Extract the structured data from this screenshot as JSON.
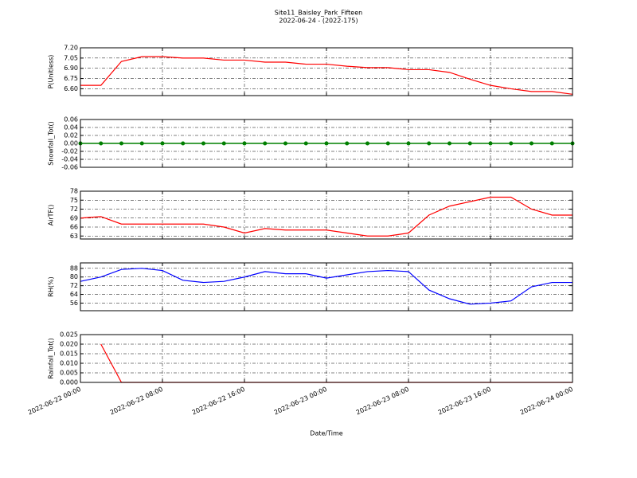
{
  "header": {
    "title": "Site11_Baisley_Park_Fifteen",
    "subtitle": "2022-06-24 - (2022-175)"
  },
  "chart_data": [
    {
      "type": "line",
      "ylabel": "P(Unitless)",
      "x": [
        "2022-06-22 00:00",
        "2022-06-22 02:00",
        "2022-06-22 04:00",
        "2022-06-22 06:00",
        "2022-06-22 08:00",
        "2022-06-22 10:00",
        "2022-06-22 12:00",
        "2022-06-22 14:00",
        "2022-06-22 16:00",
        "2022-06-22 18:00",
        "2022-06-22 20:00",
        "2022-06-22 22:00",
        "2022-06-23 00:00",
        "2022-06-23 02:00",
        "2022-06-23 04:00",
        "2022-06-23 06:00",
        "2022-06-23 08:00",
        "2022-06-23 10:00",
        "2022-06-23 12:00",
        "2022-06-23 14:00",
        "2022-06-23 16:00",
        "2022-06-23 18:00",
        "2022-06-23 20:00",
        "2022-06-23 22:00",
        "2022-06-24 00:00"
      ],
      "series": [
        {
          "color": "#ff0000",
          "values": [
            6.65,
            6.65,
            7.0,
            7.07,
            7.07,
            7.05,
            7.05,
            7.02,
            7.02,
            6.99,
            6.99,
            6.96,
            6.96,
            6.93,
            6.91,
            6.91,
            6.88,
            6.88,
            6.84,
            6.74,
            6.65,
            6.6,
            6.56,
            6.56,
            6.52
          ]
        }
      ],
      "xlim": [
        "2022-06-22 00:00",
        "2022-06-24 00:00"
      ],
      "xticks": [
        "2022-06-22 00:00",
        "2022-06-22 08:00",
        "2022-06-22 16:00",
        "2022-06-23 00:00",
        "2022-06-23 08:00",
        "2022-06-23 16:00",
        "2022-06-24 00:00"
      ],
      "ylim": [
        6.5,
        7.2
      ],
      "yticks": [
        {
          "value": 6.6,
          "label": "6.60"
        },
        6.75,
        {
          "value": 6.9,
          "label": "6.90"
        },
        7.05,
        {
          "value": 7.2,
          "label": "7.20"
        }
      ],
      "grid": true
    },
    {
      "type": "scatter",
      "ylabel": "Snowfall_Tot()",
      "x": [
        "2022-06-22 00:00",
        "2022-06-22 02:00",
        "2022-06-22 04:00",
        "2022-06-22 06:00",
        "2022-06-22 08:00",
        "2022-06-22 10:00",
        "2022-06-22 12:00",
        "2022-06-22 14:00",
        "2022-06-22 16:00",
        "2022-06-22 18:00",
        "2022-06-22 20:00",
        "2022-06-22 22:00",
        "2022-06-23 00:00",
        "2022-06-23 02:00",
        "2022-06-23 04:00",
        "2022-06-23 06:00",
        "2022-06-23 08:00",
        "2022-06-23 10:00",
        "2022-06-23 12:00",
        "2022-06-23 14:00",
        "2022-06-23 16:00",
        "2022-06-23 18:00",
        "2022-06-23 20:00",
        "2022-06-23 22:00",
        "2022-06-24 00:00"
      ],
      "series": [
        {
          "color": "#008000",
          "values": [
            0,
            0,
            0,
            0,
            0,
            0,
            0,
            0,
            0,
            0,
            0,
            0,
            0,
            0,
            0,
            0,
            0,
            0,
            0,
            0,
            0,
            0,
            0,
            0,
            0
          ]
        }
      ],
      "xlim": [
        "2022-06-22 00:00",
        "2022-06-24 00:00"
      ],
      "xticks": [
        "2022-06-22 00:00",
        "2022-06-22 08:00",
        "2022-06-22 16:00",
        "2022-06-23 00:00",
        "2022-06-23 08:00",
        "2022-06-23 16:00",
        "2022-06-24 00:00"
      ],
      "ylim": [
        -0.06,
        0.06
      ],
      "yticks": [
        -0.06,
        -0.04,
        -0.02,
        {
          "value": 0,
          "label": "0.00"
        },
        0.02,
        0.04,
        0.06
      ],
      "grid": true
    },
    {
      "type": "line",
      "ylabel": "AirTF()",
      "x": [
        "2022-06-22 00:00",
        "2022-06-22 02:00",
        "2022-06-22 04:00",
        "2022-06-22 06:00",
        "2022-06-22 08:00",
        "2022-06-22 10:00",
        "2022-06-22 12:00",
        "2022-06-22 14:00",
        "2022-06-22 16:00",
        "2022-06-22 18:00",
        "2022-06-22 20:00",
        "2022-06-22 22:00",
        "2022-06-23 00:00",
        "2022-06-23 02:00",
        "2022-06-23 04:00",
        "2022-06-23 06:00",
        "2022-06-23 08:00",
        "2022-06-23 10:00",
        "2022-06-23 12:00",
        "2022-06-23 14:00",
        "2022-06-23 16:00",
        "2022-06-23 18:00",
        "2022-06-23 20:00",
        "2022-06-23 22:00",
        "2022-06-24 00:00"
      ],
      "series": [
        {
          "color": "#ff0000",
          "values": [
            69,
            69.5,
            67,
            67,
            67,
            67,
            67,
            66,
            64,
            65.5,
            65,
            65,
            65,
            64,
            63,
            63,
            64,
            70,
            73,
            74.5,
            76,
            76,
            72,
            70,
            70
          ]
        }
      ],
      "xlim": [
        "2022-06-22 00:00",
        "2022-06-24 00:00"
      ],
      "xticks": [
        "2022-06-22 00:00",
        "2022-06-22 08:00",
        "2022-06-22 16:00",
        "2022-06-23 00:00",
        "2022-06-23 08:00",
        "2022-06-23 16:00",
        "2022-06-24 00:00"
      ],
      "ylim": [
        62,
        78
      ],
      "yticks": [
        63,
        66,
        69,
        72,
        75,
        78
      ],
      "grid": true
    },
    {
      "type": "line",
      "ylabel": "RH(%)",
      "x": [
        "2022-06-22 00:00",
        "2022-06-22 02:00",
        "2022-06-22 04:00",
        "2022-06-22 06:00",
        "2022-06-22 08:00",
        "2022-06-22 10:00",
        "2022-06-22 12:00",
        "2022-06-22 14:00",
        "2022-06-22 16:00",
        "2022-06-22 18:00",
        "2022-06-22 20:00",
        "2022-06-22 22:00",
        "2022-06-23 00:00",
        "2022-06-23 02:00",
        "2022-06-23 04:00",
        "2022-06-23 06:00",
        "2022-06-23 08:00",
        "2022-06-23 10:00",
        "2022-06-23 12:00",
        "2022-06-23 14:00",
        "2022-06-23 16:00",
        "2022-06-23 18:00",
        "2022-06-23 20:00",
        "2022-06-23 22:00",
        "2022-06-24 00:00"
      ],
      "series": [
        {
          "color": "#0000ff",
          "values": [
            76,
            80,
            87,
            88,
            86,
            77,
            75,
            76,
            80,
            85,
            83,
            83,
            79,
            82,
            85,
            86,
            85,
            68,
            60,
            55,
            56,
            58,
            71,
            75,
            75
          ]
        }
      ],
      "xlim": [
        "2022-06-22 00:00",
        "2022-06-24 00:00"
      ],
      "xticks": [
        "2022-06-22 00:00",
        "2022-06-22 08:00",
        "2022-06-22 16:00",
        "2022-06-23 00:00",
        "2022-06-23 08:00",
        "2022-06-23 16:00",
        "2022-06-24 00:00"
      ],
      "ylim": [
        49,
        93
      ],
      "yticks": [
        56,
        64,
        72,
        80,
        88
      ],
      "grid": true
    },
    {
      "type": "line",
      "ylabel": "Rainfall_Tot()",
      "xlabel": "Date/Time",
      "x": [
        "2022-06-22 00:00",
        "2022-06-22 01:00",
        "2022-06-22 02:00",
        "2022-06-22 03:00",
        "2022-06-22 04:00",
        "2022-06-22 05:00",
        "2022-06-22 06:00",
        "2022-06-22 07:00",
        "2022-06-22 08:00",
        "2022-06-22 09:00",
        "2022-06-22 10:00",
        "2022-06-22 11:00",
        "2022-06-22 12:00",
        "2022-06-22 13:00",
        "2022-06-22 14:00",
        "2022-06-22 15:00",
        "2022-06-22 16:00",
        "2022-06-22 17:00",
        "2022-06-22 18:00",
        "2022-06-22 19:00",
        "2022-06-22 20:00",
        "2022-06-22 21:00",
        "2022-06-22 22:00",
        "2022-06-22 23:00",
        "2022-06-23 00:00",
        "2022-06-23 01:00",
        "2022-06-23 02:00",
        "2022-06-23 03:00",
        "2022-06-23 04:00",
        "2022-06-23 05:00",
        "2022-06-23 06:00",
        "2022-06-23 07:00",
        "2022-06-23 08:00",
        "2022-06-23 09:00",
        "2022-06-23 10:00",
        "2022-06-23 11:00",
        "2022-06-23 12:00",
        "2022-06-23 13:00",
        "2022-06-23 14:00",
        "2022-06-23 15:00",
        "2022-06-23 16:00",
        "2022-06-23 17:00",
        "2022-06-23 18:00",
        "2022-06-23 19:00",
        "2022-06-23 20:00",
        "2022-06-23 21:00",
        "2022-06-23 22:00",
        "2022-06-23 23:00",
        "2022-06-24 00:00"
      ],
      "series": [
        {
          "color": "#ff0000",
          "values": [
            null,
            null,
            0.02,
            0.01,
            0,
            0,
            0,
            0,
            0,
            0,
            0,
            0,
            0,
            0,
            0,
            0,
            0,
            0,
            0,
            0,
            0,
            0,
            0,
            0,
            0,
            0,
            0,
            0,
            0,
            0,
            0,
            0,
            0,
            0,
            0,
            0,
            0,
            0,
            0,
            0,
            0,
            0,
            0,
            0,
            0,
            0,
            0,
            0,
            0
          ]
        }
      ],
      "xlim": [
        "2022-06-22 00:00",
        "2022-06-24 00:00"
      ],
      "xticks": [
        "2022-06-22 00:00",
        "2022-06-22 08:00",
        "2022-06-22 16:00",
        "2022-06-23 00:00",
        "2022-06-23 08:00",
        "2022-06-23 16:00",
        "2022-06-24 00:00"
      ],
      "ylim": [
        0,
        0.025
      ],
      "yticks": [
        {
          "value": 0,
          "label": "0.000"
        },
        0.005,
        {
          "value": 0.01,
          "label": "0.010"
        },
        0.015,
        {
          "value": 0.02,
          "label": "0.020"
        },
        0.025
      ],
      "grid": true
    }
  ]
}
